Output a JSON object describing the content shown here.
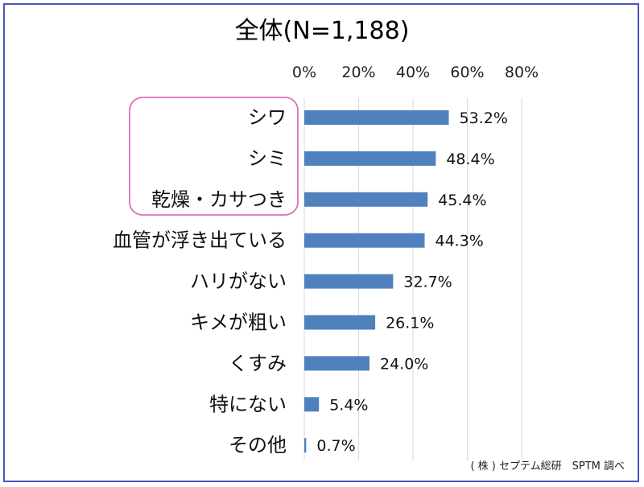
{
  "chart_data": {
    "type": "bar",
    "orientation": "horizontal",
    "title": "全体(N=1,188)",
    "xlim": [
      0,
      80
    ],
    "x_ticks": [
      "0%",
      "20%",
      "40%",
      "60%",
      "80%"
    ],
    "x_tick_values": [
      0,
      20,
      40,
      60,
      80
    ],
    "grid": true,
    "categories": [
      "シワ",
      "シミ",
      "乾燥・カサつき",
      "血管が浮き出ている",
      "ハリがない",
      "キメが粗い",
      "くすみ",
      "特にない",
      "その他"
    ],
    "values": [
      53.2,
      48.4,
      45.4,
      44.3,
      32.7,
      26.1,
      24.0,
      5.4,
      0.7
    ],
    "value_labels": [
      "53.2%",
      "48.4%",
      "45.4%",
      "44.3%",
      "32.7%",
      "26.1%",
      "24.0%",
      "5.4%",
      "0.7%"
    ],
    "bar_color": "#4f81bd",
    "highlight_categories": [
      "シワ",
      "シミ",
      "乾燥・カサつき"
    ],
    "highlight_color": "#e070b8",
    "source": "( 株 ) セプテム総研　SPTM 調べ"
  },
  "colors": {
    "frame": "#4a52c8",
    "grid": "#d9d9d9"
  }
}
